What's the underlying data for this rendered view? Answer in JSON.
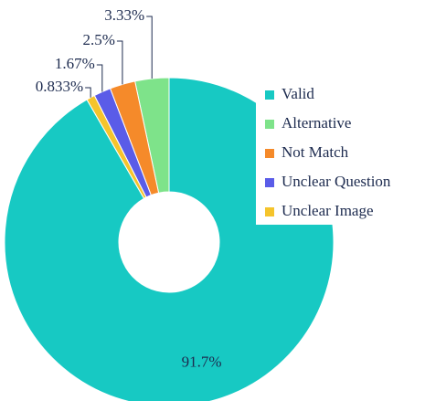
{
  "chart_data": {
    "type": "pie",
    "categories": [
      "Valid",
      "Alternative",
      "Not Match",
      "Unclear Question",
      "Unclear Image"
    ],
    "values": [
      91.7,
      3.33,
      2.5,
      1.67,
      0.833
    ],
    "value_labels": [
      "91.7%",
      "3.33%",
      "2.5%",
      "1.67%",
      "0.833%"
    ],
    "colors": [
      "#17c9c3",
      "#7ee38a",
      "#f58a2a",
      "#5a5ce8",
      "#f5c42c"
    ],
    "donut": true,
    "legend": "right"
  }
}
